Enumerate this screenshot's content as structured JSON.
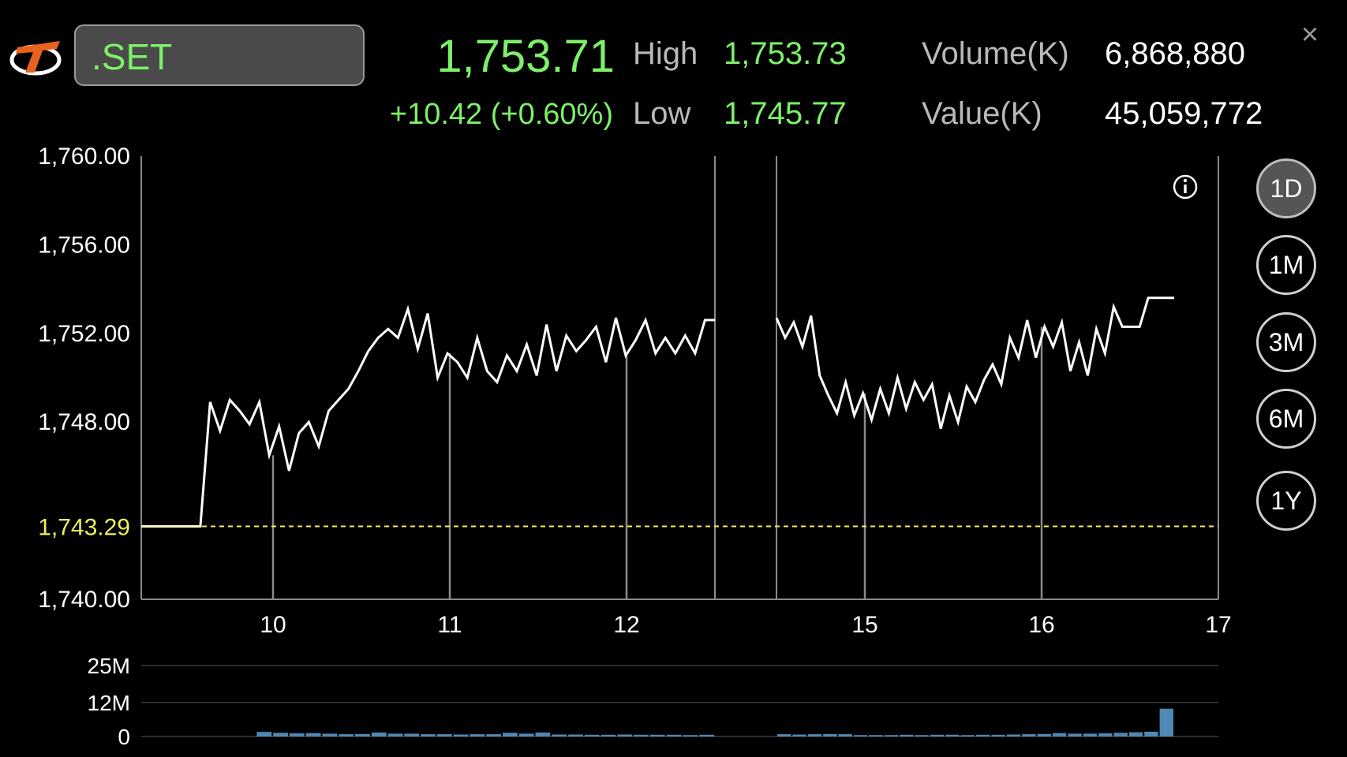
{
  "header": {
    "symbol": ".SET",
    "last": "1,753.71",
    "change": "+10.42 (+0.60%)",
    "high_label": "High",
    "high_value": "1,753.73",
    "low_label": "Low",
    "low_value": "1,745.77",
    "volume_label": "Volume(K)",
    "volume_value": "6,868,880",
    "value_label": "Value(K)",
    "value_value": "45,059,772"
  },
  "ranges": [
    {
      "label": "1D",
      "active": true
    },
    {
      "label": "1M",
      "active": false
    },
    {
      "label": "3M",
      "active": false
    },
    {
      "label": "6M",
      "active": false
    },
    {
      "label": "1Y",
      "active": false
    }
  ],
  "colors": {
    "up": "#7df06a",
    "prev_close": "#f0f060",
    "line": "#ffffff",
    "volume_bar": "#4f88b5",
    "grid": "#8a8a8a"
  },
  "icons": {
    "logo": "brand-logo",
    "close": "close-icon",
    "info": "info-icon"
  },
  "chart_data": [
    {
      "type": "line",
      "title": "",
      "x_ticks": [
        "10",
        "11",
        "12",
        "15",
        "16",
        "17"
      ],
      "y_ticks": [
        "1,760.00",
        "1,756.00",
        "1,752.00",
        "1,748.00",
        "1,740.00"
      ],
      "ylim": [
        1740,
        1760
      ],
      "prev_close": 1743.29,
      "prev_close_label": "1,743.29",
      "sessions": [
        {
          "name": "morning",
          "x_start": 9.25,
          "x_end": 12.5,
          "values": [
            1743.29,
            1743.29,
            1743.29,
            1743.29,
            1743.29,
            1743.29,
            1743.29,
            1748.9,
            1747.6,
            1749.0,
            1748.5,
            1747.9,
            1748.9,
            1746.5,
            1747.8,
            1745.8,
            1747.5,
            1748.0,
            1746.9,
            1748.5,
            1749.0,
            1749.5,
            1750.3,
            1751.2,
            1751.8,
            1752.2,
            1751.8,
            1753.1,
            1751.3,
            1752.9,
            1750.0,
            1751.1,
            1750.7,
            1750.0,
            1751.8,
            1750.3,
            1749.8,
            1751.0,
            1750.3,
            1751.5,
            1750.1,
            1752.4,
            1750.3,
            1751.9,
            1751.2,
            1751.7,
            1752.3,
            1750.7,
            1752.7,
            1751.0,
            1751.7,
            1752.6,
            1751.1,
            1751.8,
            1751.1,
            1751.9,
            1751.1,
            1752.6,
            1752.6
          ]
        },
        {
          "name": "afternoon",
          "x_start": 14.5,
          "x_end": 16.75,
          "values": [
            1752.7,
            1751.8,
            1752.5,
            1751.4,
            1752.8,
            1750.1,
            1749.2,
            1748.4,
            1749.8,
            1748.3,
            1749.3,
            1748.1,
            1749.5,
            1748.4,
            1750.0,
            1748.6,
            1749.8,
            1749.0,
            1749.7,
            1747.7,
            1749.2,
            1748.0,
            1749.6,
            1748.9,
            1749.9,
            1750.6,
            1749.7,
            1751.8,
            1750.9,
            1752.6,
            1750.9,
            1752.3,
            1751.4,
            1752.5,
            1750.3,
            1751.6,
            1750.1,
            1752.2,
            1751.1,
            1753.2,
            1752.3,
            1752.3,
            1752.3,
            1753.6,
            1753.6,
            1753.6,
            1753.6
          ]
        }
      ]
    },
    {
      "type": "bar",
      "title": "",
      "y_ticks": [
        "25M",
        "12M",
        "0"
      ],
      "ylim": [
        0,
        25
      ],
      "morning_values": [
        0,
        0,
        0,
        0,
        0,
        0,
        0,
        1.6,
        1.3,
        1.1,
        1.2,
        1.0,
        0.8,
        0.9,
        1.4,
        1.0,
        1.0,
        0.8,
        0.8,
        0.7,
        0.8,
        0.8,
        1.3,
        1.0,
        1.4,
        0.7,
        0.7,
        0.6,
        0.6,
        0.7,
        0.6,
        0.6,
        0.6,
        0.5,
        0.6
      ],
      "afternoon_values": [
        0.8,
        0.7,
        0.8,
        0.9,
        0.8,
        0.5,
        0.5,
        0.5,
        0.6,
        0.5,
        0.6,
        0.6,
        0.5,
        0.6,
        0.6,
        0.7,
        0.8,
        0.9,
        1.2,
        1.0,
        1.0,
        1.1,
        1.3,
        1.5,
        1.7,
        9.8
      ],
      "unit": "M"
    }
  ]
}
